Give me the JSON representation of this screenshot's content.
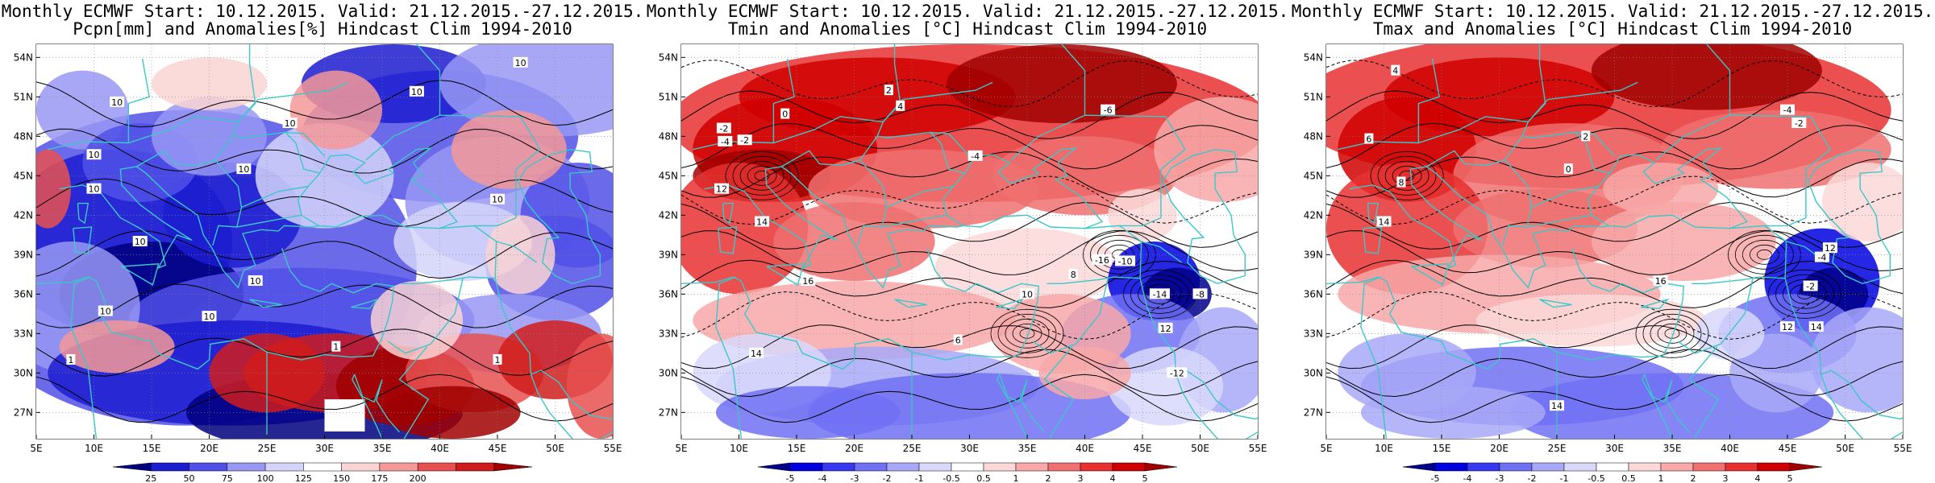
{
  "panels": [
    {
      "title_line1": "Monthly ECMWF Start: 10.12.2015. Valid: 21.12.2015.-27.12.2015.",
      "title_line2": "Pcpn[mm] and Anomalies[%] Hindcast Clim 1994-2010",
      "lat_labels": [
        "54N",
        "51N",
        "48N",
        "45N",
        "42N",
        "39N",
        "36N",
        "33N",
        "30N",
        "27N"
      ],
      "lon_labels": [
        "5E",
        "10E",
        "15E",
        "20E",
        "25E",
        "30E",
        "35E",
        "40E",
        "45E",
        "50E",
        "55E"
      ],
      "colorbar_labels": [
        "25",
        "50",
        "75",
        "100",
        "125",
        "150",
        "175",
        "200"
      ],
      "contour_labels": [
        "10",
        "10",
        "10",
        "10",
        "10",
        "10",
        "10",
        "10",
        "10",
        "10",
        "10",
        "10",
        "1",
        "1",
        "1"
      ]
    },
    {
      "title_line1": "Monthly ECMWF Start: 10.12.2015. Valid: 21.12.2015.-27.12.2015.",
      "title_line2": "Tmin and Anomalies [°C] Hindcast Clim 1994-2010",
      "lat_labels": [
        "54N",
        "51N",
        "48N",
        "45N",
        "42N",
        "39N",
        "36N",
        "33N",
        "30N",
        "27N"
      ],
      "lon_labels": [
        "5E",
        "10E",
        "15E",
        "20E",
        "25E",
        "30E",
        "35E",
        "40E",
        "45E",
        "50E",
        "55E"
      ],
      "colorbar_labels": [
        "-5",
        "-4",
        "-3",
        "-2",
        "-1",
        "-0.5",
        "0.5",
        "1",
        "2",
        "3",
        "4",
        "5"
      ],
      "contour_labels": [
        "2",
        "-2",
        "-4",
        "-6",
        "-2",
        "0",
        "4",
        "-4",
        "14",
        "12",
        "16",
        "-14",
        "-10",
        "-16",
        "-8",
        "12",
        "14",
        "6",
        "8",
        "10",
        "-12"
      ]
    },
    {
      "title_line1": "Monthly ECMWF Start: 10.12.2015. Valid: 21.12.2015.-27.12.2015.",
      "title_line2": "Tmax and Anomalies [°C] Hindcast Clim 1994-2010",
      "lat_labels": [
        "54N",
        "51N",
        "48N",
        "45N",
        "42N",
        "39N",
        "36N",
        "33N",
        "30N",
        "27N"
      ],
      "lon_labels": [
        "5E",
        "10E",
        "15E",
        "20E",
        "25E",
        "30E",
        "35E",
        "40E",
        "45E",
        "50E",
        "55E"
      ],
      "colorbar_labels": [
        "-5",
        "-4",
        "-3",
        "-2",
        "-1",
        "-0.5",
        "0.5",
        "1",
        "2",
        "3",
        "4",
        "5"
      ],
      "contour_labels": [
        "4",
        "-4",
        "-2",
        "6",
        "8",
        "0",
        "2",
        "14",
        "16",
        "12",
        "-4",
        "-2",
        "14",
        "12",
        "14"
      ]
    }
  ],
  "palette": {
    "precip": [
      "#000080",
      "#1c1cd0",
      "#5050e8",
      "#9898f4",
      "#d4d4fa",
      "#ffffff",
      "#fad4d4",
      "#f49898",
      "#e85050",
      "#d01c1c",
      "#a00000"
    ],
    "temperature": [
      "#00008b",
      "#0000e0",
      "#3838f0",
      "#7070f5",
      "#a8a8f8",
      "#d8d8fb",
      "#ffffff",
      "#fcd8d8",
      "#f8a8a8",
      "#f07070",
      "#e83030",
      "#d00000",
      "#a00000"
    ],
    "coastline": "#3cc8c8",
    "contour": "#000000"
  }
}
